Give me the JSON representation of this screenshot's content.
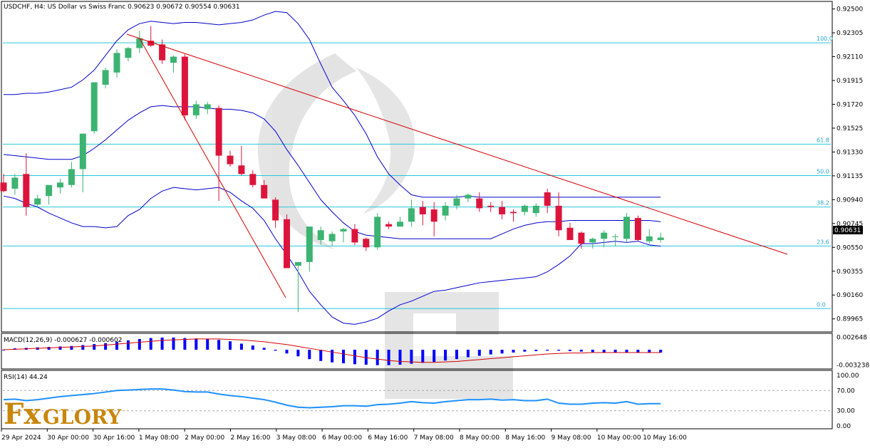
{
  "header": {
    "symbol_line": "USDCHF, H4:  US Dollar vs Swiss Franc  0.90623 0.90672 0.90554 0.90631"
  },
  "logo": {
    "fx": "Fx",
    "glory": "GLORY"
  },
  "colors": {
    "bull": "#3cb371",
    "bear": "#dc143c",
    "bollinger": "#0000cd",
    "fib": "#26c6da",
    "trend": "#d40000",
    "macd_hist": "#0000ff",
    "macd_signal": "#d40000",
    "rsi": "#1e90ff",
    "price_tag": "#000000"
  },
  "chart_data": [
    {
      "type": "candlestick",
      "title": "USDCHF, H4:  US Dollar vs Swiss Franc",
      "price_axis": {
        "ylim": [
          0.8987,
          0.9255
        ],
        "ticks": [
          "0.92500",
          "0.92305",
          "0.92110",
          "0.91915",
          "0.91720",
          "0.91525",
          "0.91330",
          "0.91135",
          "0.90940",
          "0.90745",
          "0.90550",
          "0.90355",
          "0.90160",
          "0.89965"
        ],
        "current_price": "0.90631"
      },
      "time_axis": {
        "labels": [
          "29 Apr 2024",
          "30 Apr 00:00",
          "30 Apr 16:00",
          "1 May 08:00",
          "2 May 00:00",
          "2 May 16:00",
          "3 May 08:00",
          "6 May 00:00",
          "6 May 16:00",
          "7 May 08:00",
          "8 May 00:00",
          "8 May 16:00",
          "9 May 08:00",
          "10 May 00:00",
          "10 May 16:00"
        ]
      },
      "candles_ohlc": [
        [
          0.9108,
          0.9115,
          0.91,
          0.9101
        ],
        [
          0.9103,
          0.9115,
          0.9098,
          0.9112
        ],
        [
          0.9115,
          0.9132,
          0.9081,
          0.9088
        ],
        [
          0.909,
          0.9098,
          0.9087,
          0.9095
        ],
        [
          0.9097,
          0.9104,
          0.909,
          0.9106
        ],
        [
          0.9104,
          0.9111,
          0.9099,
          0.9108
        ],
        [
          0.9106,
          0.9125,
          0.9104,
          0.9119
        ],
        [
          0.9119,
          0.9148,
          0.91,
          0.9148
        ],
        [
          0.915,
          0.919,
          0.9148,
          0.919
        ],
        [
          0.9188,
          0.9202,
          0.9185,
          0.92
        ],
        [
          0.9198,
          0.9217,
          0.9194,
          0.9214
        ],
        [
          0.921,
          0.9219,
          0.9207,
          0.9218
        ],
        [
          0.9218,
          0.9232,
          0.9214,
          0.9226
        ],
        [
          0.9224,
          0.9236,
          0.9219,
          0.922
        ],
        [
          0.9221,
          0.9225,
          0.9205,
          0.9208
        ],
        [
          0.9206,
          0.9212,
          0.9198,
          0.9211
        ],
        [
          0.9211,
          0.9213,
          0.9159,
          0.9163
        ],
        [
          0.9163,
          0.9175,
          0.916,
          0.9172
        ],
        [
          0.9168,
          0.9174,
          0.9164,
          0.9172
        ],
        [
          0.9169,
          0.9171,
          0.9093,
          0.913
        ],
        [
          0.913,
          0.9134,
          0.9121,
          0.9123
        ],
        [
          0.9122,
          0.9138,
          0.9114,
          0.9115
        ],
        [
          0.9115,
          0.9118,
          0.9104,
          0.9106
        ],
        [
          0.9106,
          0.911,
          0.9095,
          0.9095
        ],
        [
          0.9094,
          0.9096,
          0.9071,
          0.9077
        ],
        [
          0.9078,
          0.9082,
          0.9038,
          0.9038
        ],
        [
          0.904,
          0.9042,
          0.9002,
          0.9043
        ],
        [
          0.9043,
          0.9072,
          0.9035,
          0.9072
        ],
        [
          0.9061,
          0.9072,
          0.9057,
          0.9069
        ],
        [
          0.906,
          0.9068,
          0.9056,
          0.9066
        ],
        [
          0.9068,
          0.9071,
          0.9059,
          0.907
        ],
        [
          0.907,
          0.9074,
          0.9057,
          0.9059
        ],
        [
          0.9062,
          0.9063,
          0.9052,
          0.9055
        ],
        [
          0.9055,
          0.9083,
          0.9053,
          0.908
        ],
        [
          0.9074,
          0.9076,
          0.907,
          0.9072
        ],
        [
          0.9072,
          0.908,
          0.9072,
          0.9076
        ],
        [
          0.9076,
          0.9094,
          0.9072,
          0.9087
        ],
        [
          0.9088,
          0.9093,
          0.9073,
          0.9082
        ],
        [
          0.9086,
          0.9092,
          0.9064,
          0.9076
        ],
        [
          0.9081,
          0.9092,
          0.9077,
          0.9089
        ],
        [
          0.9089,
          0.9098,
          0.9086,
          0.9095
        ],
        [
          0.9095,
          0.9099,
          0.9092,
          0.9098
        ],
        [
          0.9095,
          0.91,
          0.9084,
          0.9087
        ],
        [
          0.9089,
          0.9092,
          0.9084,
          0.9088
        ],
        [
          0.9088,
          0.9093,
          0.9078,
          0.9082
        ],
        [
          0.9084,
          0.9086,
          0.9076,
          0.9083
        ],
        [
          0.9084,
          0.909,
          0.9081,
          0.9089
        ],
        [
          0.9083,
          0.9091,
          0.908,
          0.9089
        ],
        [
          0.91,
          0.9103,
          0.9083,
          0.9089
        ],
        [
          0.9089,
          0.91,
          0.9064,
          0.9069
        ],
        [
          0.9071,
          0.9075,
          0.9062,
          0.9061
        ],
        [
          0.9067,
          0.9068,
          0.9054,
          0.9058
        ],
        [
          0.9059,
          0.9063,
          0.9054,
          0.9062
        ],
        [
          0.9062,
          0.9069,
          0.9055,
          0.9067
        ],
        [
          0.9064,
          0.9066,
          0.9056,
          0.9064
        ],
        [
          0.9062,
          0.9083,
          0.9059,
          0.908
        ],
        [
          0.9079,
          0.9081,
          0.906,
          0.9061
        ],
        [
          0.906,
          0.907,
          0.9058,
          0.9064
        ],
        [
          0.9061,
          0.9067,
          0.9059,
          0.9063
        ]
      ],
      "bollinger": {
        "upper": [
          0.918,
          0.918,
          0.9181,
          0.9181,
          0.9182,
          0.9184,
          0.9186,
          0.9192,
          0.92,
          0.9212,
          0.9224,
          0.9233,
          0.9238,
          0.924,
          0.9239,
          0.9238,
          0.9239,
          0.9239,
          0.9238,
          0.9237,
          0.9238,
          0.9239,
          0.9241,
          0.9245,
          0.9248,
          0.9247,
          0.9238,
          0.9225,
          0.9205,
          0.9186,
          0.9175,
          0.9163,
          0.9148,
          0.9129,
          0.9115,
          0.9106,
          0.9098,
          0.9096,
          0.9096,
          0.9096,
          0.9096,
          0.9097,
          0.9096,
          0.9096,
          0.9096,
          0.9096,
          0.9096,
          0.9096,
          0.9096,
          0.9096,
          0.9096,
          0.9096,
          0.9096,
          0.9096,
          0.9096,
          0.9096,
          0.9096,
          0.9096,
          0.9096
        ],
        "middle": [
          0.9131,
          0.913,
          0.9129,
          0.9128,
          0.9127,
          0.9127,
          0.9127,
          0.913,
          0.9136,
          0.9143,
          0.9151,
          0.9159,
          0.9165,
          0.917,
          0.9171,
          0.917,
          0.917,
          0.917,
          0.9169,
          0.9168,
          0.9168,
          0.9167,
          0.9165,
          0.916,
          0.915,
          0.9135,
          0.9122,
          0.9108,
          0.9094,
          0.9084,
          0.9075,
          0.9068,
          0.9065,
          0.9064,
          0.9063,
          0.9062,
          0.9062,
          0.9062,
          0.9062,
          0.9062,
          0.9062,
          0.9062,
          0.9062,
          0.9062,
          0.9066,
          0.907,
          0.9073,
          0.9075,
          0.9076,
          0.9076,
          0.9077,
          0.9077,
          0.9077,
          0.9077,
          0.9077,
          0.9077,
          0.9077,
          0.9077,
          0.9076
        ],
        "lower": [
          0.9097,
          0.9095,
          0.9091,
          0.9088,
          0.9083,
          0.9079,
          0.9075,
          0.9072,
          0.9072,
          0.9071,
          0.9072,
          0.9081,
          0.9086,
          0.9095,
          0.9101,
          0.9104,
          0.9103,
          0.9102,
          0.9103,
          0.9104,
          0.91,
          0.9093,
          0.9087,
          0.9077,
          0.9062,
          0.9049,
          0.9035,
          0.9019,
          0.9008,
          0.8998,
          0.8993,
          0.8992,
          0.8994,
          0.8997,
          0.9003,
          0.9008,
          0.9011,
          0.9015,
          0.9019,
          0.902,
          0.9022,
          0.9024,
          0.9026,
          0.9027,
          0.9028,
          0.9029,
          0.903,
          0.9031,
          0.9035,
          0.9041,
          0.9048,
          0.9058,
          0.9058,
          0.9059,
          0.906,
          0.9059,
          0.906,
          0.9057,
          0.9056
        ]
      },
      "fibonacci_levels": [
        {
          "label": "100.0",
          "price": 0.92223
        },
        {
          "label": "61.8",
          "price": 0.91394
        },
        {
          "label": "50.0",
          "price": 0.91137
        },
        {
          "label": "38.2",
          "price": 0.9088
        },
        {
          "label": "23.6",
          "price": 0.90561
        },
        {
          "label": "0.0",
          "price": 0.90049
        }
      ],
      "trendlines": [
        {
          "from": [
            0.9227,
            0
          ],
          "to": [
            0.904,
            0
          ],
          "kind": "red-swing"
        }
      ]
    },
    {
      "type": "bar",
      "title": "MACD(12,26,9) -0.000627 -0.000602",
      "ylim": [
        -0.0038,
        0.0032
      ],
      "ticks": [
        "0.002648",
        "-0.003238"
      ],
      "histogram": [
        0.0,
        0.0003,
        0.0004,
        0.0005,
        0.0006,
        0.0007,
        0.0008,
        0.001,
        0.0012,
        0.0014,
        0.0017,
        0.002,
        0.0023,
        0.0025,
        0.0026,
        0.0026,
        0.0025,
        0.0024,
        0.0023,
        0.0021,
        0.0018,
        0.0013,
        0.0009,
        0.0004,
        -0.0002,
        -0.0008,
        -0.0014,
        -0.002,
        -0.0024,
        -0.0027,
        -0.0029,
        -0.0031,
        -0.0032,
        -0.0033,
        -0.0033,
        -0.0032,
        -0.003,
        -0.0028,
        -0.0026,
        -0.0023,
        -0.002,
        -0.0016,
        -0.0013,
        -0.001,
        -0.0008,
        -0.0006,
        -0.0004,
        -0.0003,
        -0.0002,
        -0.0002,
        -0.0003,
        -0.0004,
        -0.0005,
        -0.0006,
        -0.0006,
        -0.0006,
        -0.0006,
        -0.0006,
        -0.0006
      ],
      "signal": [
        0.0,
        0.0001,
        0.0002,
        0.0003,
        0.0004,
        0.0005,
        0.0006,
        0.0007,
        0.0008,
        0.001,
        0.0012,
        0.0014,
        0.0016,
        0.0018,
        0.002,
        0.0021,
        0.0022,
        0.0023,
        0.0023,
        0.0023,
        0.0022,
        0.0021,
        0.0019,
        0.0017,
        0.0014,
        0.0011,
        0.0007,
        0.0003,
        -0.0001,
        -0.0005,
        -0.0009,
        -0.0013,
        -0.0017,
        -0.002,
        -0.0023,
        -0.0025,
        -0.0026,
        -0.0027,
        -0.0027,
        -0.0026,
        -0.0025,
        -0.0023,
        -0.0021,
        -0.0019,
        -0.0017,
        -0.0015,
        -0.0013,
        -0.0011,
        -0.0009,
        -0.0008,
        -0.0007,
        -0.0007,
        -0.0006,
        -0.0006,
        -0.0006,
        -0.0006,
        -0.0006,
        -0.0006,
        -0.0006
      ]
    },
    {
      "type": "line",
      "title": "RSI(14) 44.24",
      "ylim": [
        0,
        100
      ],
      "ticks": [
        "100.00",
        "70.00",
        "30.00",
        "0.00"
      ],
      "levels": [
        70,
        30
      ],
      "values": [
        52,
        53,
        50,
        52,
        55,
        58,
        60,
        62,
        64,
        67,
        70,
        71,
        72,
        73,
        73,
        71,
        68,
        67,
        67,
        63,
        60,
        58,
        55,
        52,
        47,
        41,
        37,
        36,
        37,
        38,
        40,
        40,
        39,
        42,
        43,
        45,
        48,
        46,
        45,
        48,
        50,
        52,
        52,
        53,
        51,
        52,
        50,
        50,
        53,
        45,
        43,
        43,
        45,
        46,
        45,
        48,
        43,
        44,
        44
      ]
    }
  ]
}
